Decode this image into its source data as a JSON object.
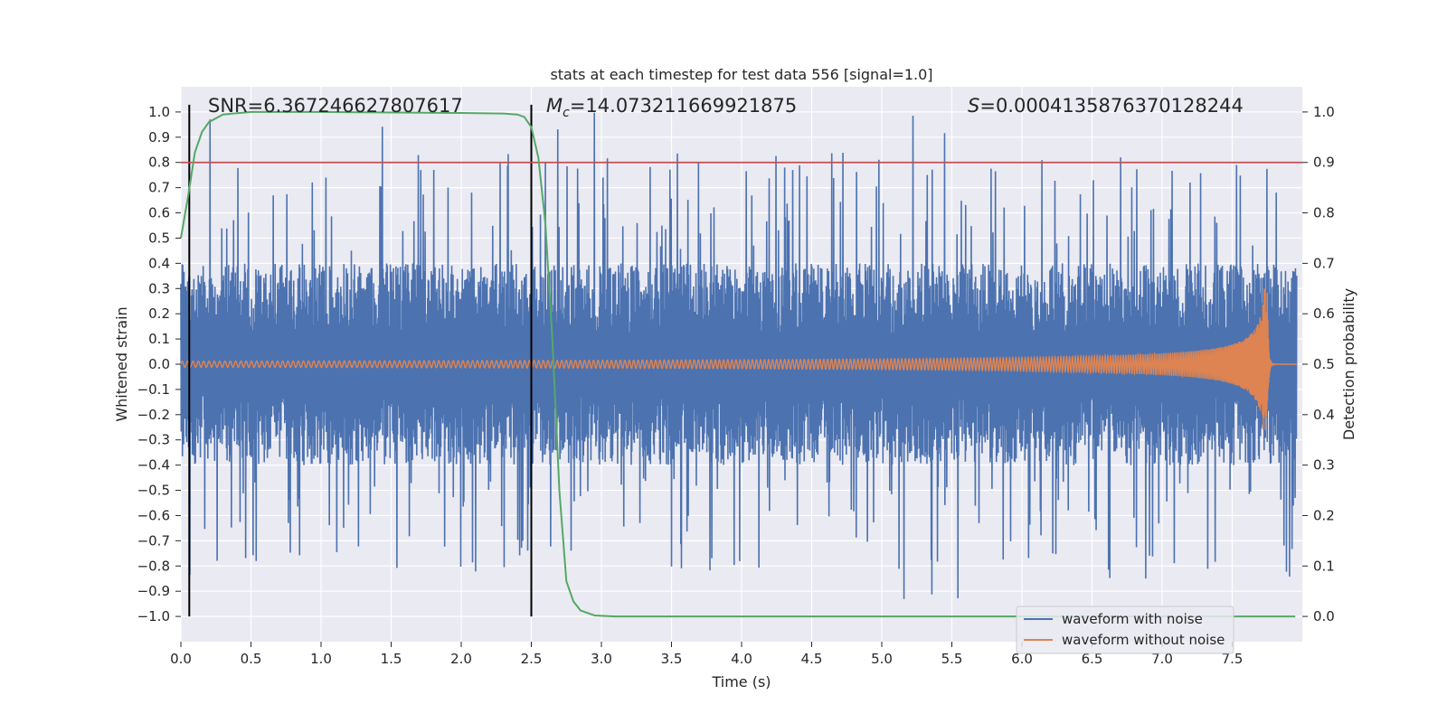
{
  "chart_data": {
    "type": "line",
    "title": "stats at each timestep for test data 556 [signal=1.0]",
    "xlabel": "Time (s)",
    "ylabel": "Whitened strain",
    "ylabel_right": "Detection probability",
    "xlim": [
      0.0,
      8.0
    ],
    "ylim": [
      -1.1,
      1.1
    ],
    "ylim_right": [
      -0.05,
      1.05
    ],
    "x_ticks": [
      "0.0",
      "0.5",
      "1.0",
      "1.5",
      "2.0",
      "2.5",
      "3.0",
      "3.5",
      "4.0",
      "4.5",
      "5.0",
      "5.5",
      "6.0",
      "6.5",
      "7.0",
      "7.5"
    ],
    "y_ticks": [
      "1.0",
      "0.9",
      "0.8",
      "0.7",
      "0.6",
      "0.5",
      "0.4",
      "0.3",
      "0.2",
      "0.1",
      "0.0",
      "−0.1",
      "−0.2",
      "−0.3",
      "−0.4",
      "−0.5",
      "−0.6",
      "−0.7",
      "−0.8",
      "−0.9",
      "−1.0"
    ],
    "y_ticks_right": [
      "1.0",
      "0.9",
      "0.8",
      "0.7",
      "0.6",
      "0.5",
      "0.4",
      "0.3",
      "0.2",
      "0.1",
      "0.0"
    ],
    "grid": true,
    "legend_position": "bottom-right",
    "annotations": {
      "snr": "SNR=6.367246627807617",
      "mc_symbol": "M",
      "mc_sub": "c",
      "mc_value": "=14.073211669921875",
      "s_symbol": "S",
      "s_value": "=0.0004135876370128244"
    },
    "series": [
      {
        "name": "waveform with noise",
        "color": "#4c72b0",
        "kind": "noise",
        "amplitude_typical": 0.4,
        "amplitude_max": 1.0
      },
      {
        "name": "waveform without noise",
        "color": "#dd8452",
        "kind": "chirp",
        "merger_time": 7.75,
        "peak_amplitude": 0.3
      },
      {
        "name": "detection probability",
        "color": "#55a868",
        "axis": "right",
        "points": [
          [
            0.0,
            0.75
          ],
          [
            0.05,
            0.83
          ],
          [
            0.1,
            0.92
          ],
          [
            0.15,
            0.96
          ],
          [
            0.2,
            0.98
          ],
          [
            0.3,
            0.995
          ],
          [
            0.5,
            1.0
          ],
          [
            1.0,
            1.0
          ],
          [
            2.0,
            0.998
          ],
          [
            2.3,
            0.997
          ],
          [
            2.4,
            0.995
          ],
          [
            2.45,
            0.99
          ],
          [
            2.5,
            0.97
          ],
          [
            2.55,
            0.91
          ],
          [
            2.6,
            0.78
          ],
          [
            2.65,
            0.55
          ],
          [
            2.7,
            0.25
          ],
          [
            2.75,
            0.07
          ],
          [
            2.8,
            0.03
          ],
          [
            2.85,
            0.012
          ],
          [
            2.95,
            0.002
          ],
          [
            3.1,
            0.0
          ],
          [
            7.95,
            0.0
          ]
        ]
      },
      {
        "name": "threshold",
        "color": "#c44e52",
        "axis": "right",
        "value": 0.9
      }
    ],
    "vertical_lines": [
      0.06,
      2.5
    ]
  }
}
